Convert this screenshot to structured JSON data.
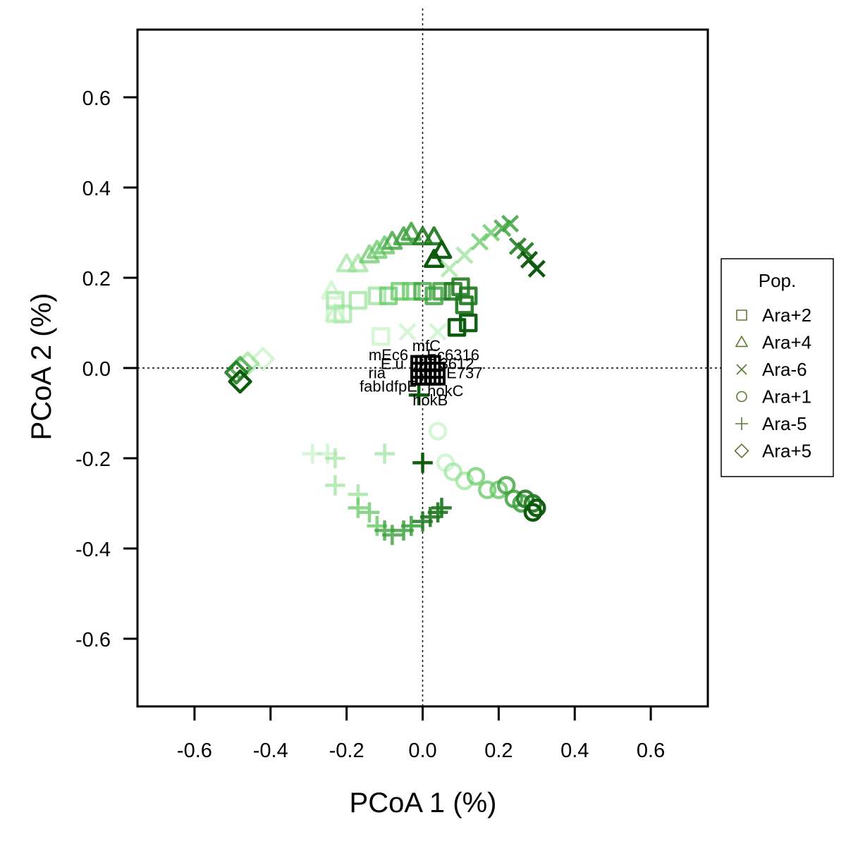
{
  "chart_data": {
    "type": "scatter",
    "xlabel": "PCoA 1 (%)",
    "ylabel": "PCoA 2 (%)",
    "xlim": [
      -0.75,
      0.75
    ],
    "ylim": [
      -0.75,
      0.75
    ],
    "x_ticks": [
      "-0.6",
      "-0.4",
      "-0.2",
      "0.0",
      "0.2",
      "0.4",
      "0.6"
    ],
    "y_ticks": [
      "0.6",
      "0.4",
      "0.2",
      "0.0",
      "-0.2",
      "-0.4",
      "-0.6"
    ],
    "x_tick_values": [
      -0.6,
      -0.4,
      -0.2,
      0.0,
      0.2,
      0.4,
      0.6
    ],
    "y_tick_values": [
      0.6,
      0.4,
      0.2,
      0.0,
      -0.2,
      -0.4,
      -0.6
    ],
    "reference_lines": {
      "x": 0,
      "y": 0,
      "style": "dotted"
    },
    "grid": false,
    "legend": {
      "title": "Pop.",
      "position": "right",
      "entries": [
        {
          "label": "Ara+2",
          "shape": "square"
        },
        {
          "label": "Ara+4",
          "shape": "triangle"
        },
        {
          "label": "Ara-6",
          "shape": "cross"
        },
        {
          "label": "Ara+1",
          "shape": "circle"
        },
        {
          "label": "Ara-5",
          "shape": "plus"
        },
        {
          "label": "Ara+5",
          "shape": "diamond"
        }
      ],
      "color": "#5a7a32"
    },
    "color_gradient": [
      "#b5efb5",
      "#8fe08f",
      "#5fc65f",
      "#3aa13a",
      "#217a21",
      "#0b5a0b"
    ],
    "series": [
      {
        "name": "Ara+2",
        "shape": "square",
        "points": [
          [
            -0.11,
            0.07
          ],
          [
            -0.23,
            0.12
          ],
          [
            -0.21,
            0.12
          ],
          [
            -0.23,
            0.15
          ],
          [
            -0.17,
            0.15
          ],
          [
            -0.12,
            0.16
          ],
          [
            -0.09,
            0.16
          ],
          [
            -0.06,
            0.17
          ],
          [
            -0.03,
            0.17
          ],
          [
            0.0,
            0.17
          ],
          [
            0.03,
            0.16
          ],
          [
            0.05,
            0.17
          ],
          [
            0.08,
            0.17
          ],
          [
            0.1,
            0.18
          ],
          [
            0.12,
            0.16
          ],
          [
            0.11,
            0.14
          ],
          [
            0.12,
            0.1
          ],
          [
            0.09,
            0.09
          ]
        ]
      },
      {
        "name": "Ara+4",
        "shape": "triangle",
        "points": [
          [
            -0.24,
            0.17
          ],
          [
            -0.23,
            0.12
          ],
          [
            -0.2,
            0.23
          ],
          [
            -0.17,
            0.23
          ],
          [
            -0.14,
            0.25
          ],
          [
            -0.12,
            0.26
          ],
          [
            -0.1,
            0.27
          ],
          [
            -0.08,
            0.28
          ],
          [
            -0.05,
            0.29
          ],
          [
            -0.03,
            0.3
          ],
          [
            0.0,
            0.29
          ],
          [
            0.03,
            0.29
          ],
          [
            0.05,
            0.26
          ],
          [
            0.03,
            0.24
          ]
        ]
      },
      {
        "name": "Ara-6",
        "shape": "cross",
        "points": [
          [
            -0.04,
            0.08
          ],
          [
            0.04,
            0.08
          ],
          [
            0.07,
            0.22
          ],
          [
            0.11,
            0.25
          ],
          [
            0.15,
            0.28
          ],
          [
            0.18,
            0.3
          ],
          [
            0.21,
            0.31
          ],
          [
            0.23,
            0.32
          ],
          [
            0.25,
            0.27
          ],
          [
            0.27,
            0.26
          ],
          [
            0.28,
            0.24
          ],
          [
            0.3,
            0.22
          ]
        ]
      },
      {
        "name": "Ara+1",
        "shape": "circle",
        "points": [
          [
            0.04,
            -0.14
          ],
          [
            0.06,
            -0.21
          ],
          [
            0.08,
            -0.23
          ],
          [
            0.11,
            -0.25
          ],
          [
            0.14,
            -0.24
          ],
          [
            0.17,
            -0.27
          ],
          [
            0.2,
            -0.27
          ],
          [
            0.22,
            -0.26
          ],
          [
            0.24,
            -0.29
          ],
          [
            0.26,
            -0.3
          ],
          [
            0.27,
            -0.29
          ],
          [
            0.29,
            -0.3
          ],
          [
            0.3,
            -0.31
          ],
          [
            0.29,
            -0.32
          ]
        ]
      },
      {
        "name": "Ara-5",
        "shape": "plus",
        "points": [
          [
            -0.29,
            -0.19
          ],
          [
            -0.25,
            -0.19
          ],
          [
            -0.23,
            -0.2
          ],
          [
            -0.1,
            -0.19
          ],
          [
            -0.23,
            -0.26
          ],
          [
            -0.17,
            -0.28
          ],
          [
            -0.17,
            -0.31
          ],
          [
            -0.14,
            -0.32
          ],
          [
            -0.12,
            -0.35
          ],
          [
            -0.1,
            -0.36
          ],
          [
            -0.08,
            -0.37
          ],
          [
            -0.05,
            -0.36
          ],
          [
            -0.03,
            -0.35
          ],
          [
            0.0,
            -0.34
          ],
          [
            0.02,
            -0.33
          ],
          [
            0.04,
            -0.32
          ],
          [
            0.05,
            -0.31
          ],
          [
            0.0,
            -0.21
          ],
          [
            -0.01,
            -0.06
          ]
        ]
      },
      {
        "name": "Ara+5",
        "shape": "diamond",
        "points": [
          [
            -0.42,
            0.02
          ],
          [
            -0.46,
            0.01
          ],
          [
            -0.48,
            0.0
          ],
          [
            -0.49,
            -0.01
          ],
          [
            -0.48,
            -0.03
          ]
        ]
      }
    ],
    "gene_labels": [
      {
        "text": "mfC",
        "x": 0.01,
        "y": 0.05
      },
      {
        "text": "mEc6",
        "x": -0.09,
        "y": 0.03
      },
      {
        "text": "Ec6316",
        "x": 0.08,
        "y": 0.03
      },
      {
        "text": "E.u",
        "x": -0.08,
        "y": 0.01
      },
      {
        "text": "3612",
        "x": 0.09,
        "y": 0.01
      },
      {
        "text": "ria",
        "x": -0.12,
        "y": -0.01
      },
      {
        "text": "E737",
        "x": 0.11,
        "y": -0.01
      },
      {
        "text": "fabIdfpE",
        "x": -0.09,
        "y": -0.04
      },
      {
        "text": "hokC",
        "x": 0.06,
        "y": -0.05
      },
      {
        "text": "hokB",
        "x": 0.02,
        "y": -0.07
      }
    ]
  }
}
